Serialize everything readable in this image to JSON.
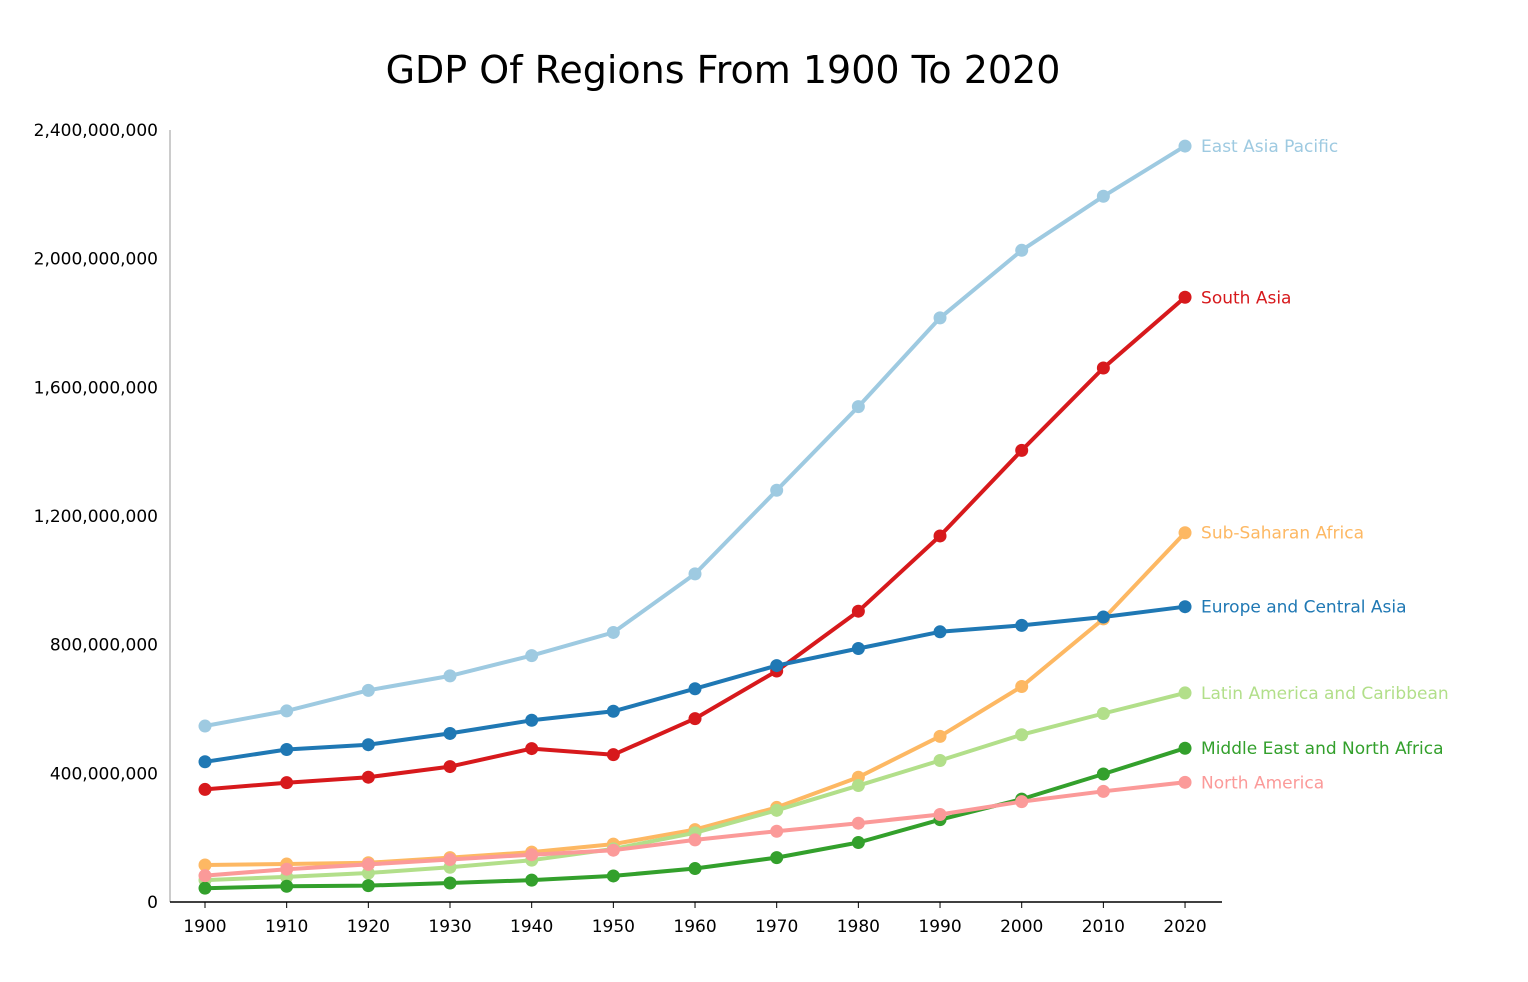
{
  "chart_data": {
    "type": "line",
    "title": "GDP Of Regions From 1900 To 2020",
    "xlabel": "",
    "ylabel": "",
    "x": [
      1900,
      1910,
      1920,
      1930,
      1940,
      1950,
      1960,
      1970,
      1980,
      1990,
      2000,
      2010,
      2020
    ],
    "x_tick_labels": [
      "1900",
      "1910",
      "1920",
      "1930",
      "1940",
      "1950",
      "1960",
      "1970",
      "1980",
      "1990",
      "2000",
      "2010",
      "2020"
    ],
    "ylim": [
      0,
      2400000000
    ],
    "y_ticks": [
      0,
      400000000,
      800000000,
      1200000000,
      1600000000,
      2000000000,
      2400000000
    ],
    "y_tick_labels": [
      "0",
      "400,000,000",
      "800,000,000",
      "1,200,000,000",
      "1,600,000,000",
      "2,000,000,000",
      "2,400,000,000"
    ],
    "grid": false,
    "legend": "labels at line ends (right)",
    "series": [
      {
        "name": "East Asia Pacific",
        "color": "#9ecae1",
        "values": [
          547000000,
          594000000,
          658000000,
          703000000,
          766000000,
          838000000,
          1020000000,
          1280000000,
          1540000000,
          1816000000,
          2026000000,
          2194000000,
          2350000000
        ]
      },
      {
        "name": "South Asia",
        "color": "#d7191c",
        "values": [
          350000000,
          371000000,
          388000000,
          421000000,
          477000000,
          458000000,
          570000000,
          718000000,
          904000000,
          1138000000,
          1404000000,
          1660000000,
          1880000000
        ]
      },
      {
        "name": "Sub-Saharan Africa",
        "color": "#fdb863",
        "values": [
          115000000,
          118000000,
          122000000,
          138000000,
          155000000,
          180000000,
          225000000,
          294000000,
          388000000,
          515000000,
          670000000,
          880000000,
          1148000000
        ]
      },
      {
        "name": "Europe and Central Asia",
        "color": "#1f78b4",
        "values": [
          436000000,
          474000000,
          489000000,
          524000000,
          565000000,
          593000000,
          663000000,
          735000000,
          788000000,
          840000000,
          860000000,
          886000000,
          918000000
        ]
      },
      {
        "name": "Latin America and Caribbean",
        "color": "#b2df8a",
        "values": [
          68000000,
          78000000,
          90000000,
          108000000,
          130000000,
          165000000,
          215000000,
          285000000,
          362000000,
          440000000,
          520000000,
          586000000,
          650000000
        ]
      },
      {
        "name": "Middle East and North Africa",
        "color": "#33a02c",
        "values": [
          43000000,
          49000000,
          51000000,
          59000000,
          68000000,
          81000000,
          104000000,
          138000000,
          185000000,
          256000000,
          320000000,
          398000000,
          478000000
        ]
      },
      {
        "name": "North America",
        "color": "#fb9a99",
        "values": [
          82000000,
          102000000,
          117000000,
          132000000,
          147000000,
          161000000,
          193000000,
          220000000,
          245000000,
          272000000,
          312000000,
          344000000,
          372000000
        ]
      }
    ]
  }
}
